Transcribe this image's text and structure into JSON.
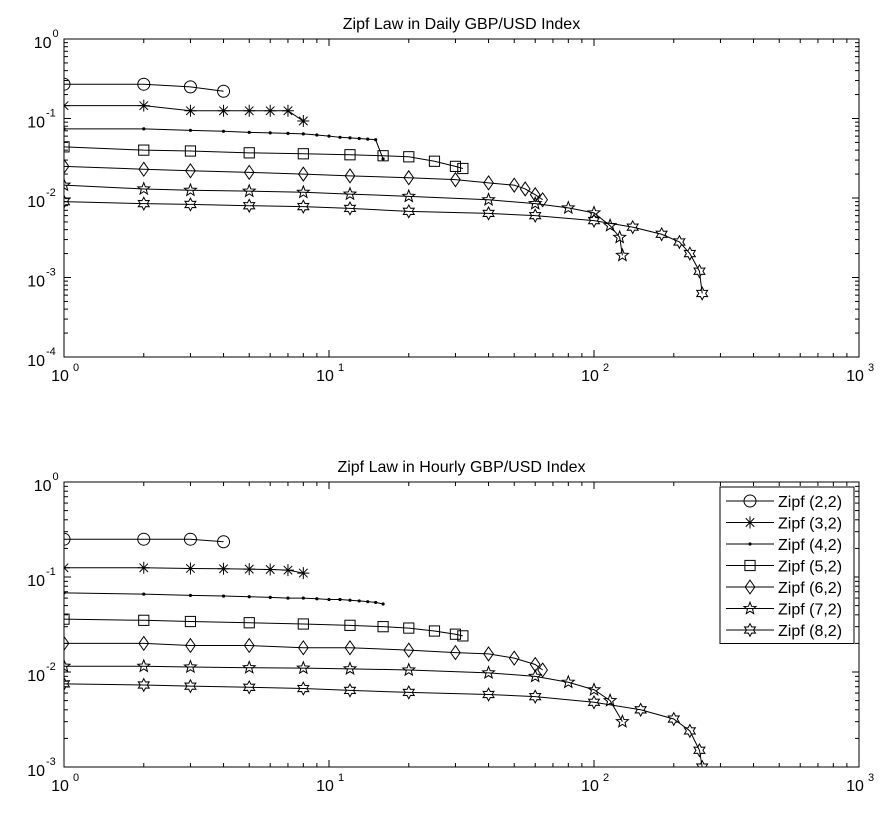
{
  "chart_data": [
    {
      "type": "line",
      "title": "Zipf Law in Daily GBP/USD Index",
      "xlabel": "",
      "ylabel": "",
      "xscale": "log",
      "yscale": "log",
      "xlim": [
        1,
        1000
      ],
      "ylim": [
        0.0001,
        1
      ],
      "grid": false,
      "x_ticks": [
        {
          "base": "10",
          "exp": "0"
        },
        {
          "base": "10",
          "exp": "1"
        },
        {
          "base": "10",
          "exp": "2"
        },
        {
          "base": "10",
          "exp": "3"
        }
      ],
      "y_ticks": [
        {
          "base": "10",
          "exp": "0"
        },
        {
          "base": "10",
          "exp": "-1"
        },
        {
          "base": "10",
          "exp": "-2"
        },
        {
          "base": "10",
          "exp": "-3"
        },
        {
          "base": "10",
          "exp": "-4"
        }
      ],
      "series": [
        {
          "marker": "circle",
          "x": [
            1,
            2,
            3,
            4
          ],
          "y": [
            0.27,
            0.27,
            0.25,
            0.22
          ]
        },
        {
          "marker": "asterisk",
          "x": [
            1,
            2,
            3,
            4,
            5,
            6,
            7,
            8
          ],
          "y": [
            0.145,
            0.145,
            0.125,
            0.125,
            0.125,
            0.125,
            0.125,
            0.093
          ]
        },
        {
          "marker": "dot",
          "x": [
            1,
            2,
            3,
            4,
            5,
            6,
            7,
            8,
            9,
            10,
            11,
            12,
            13,
            14,
            15,
            16
          ],
          "y": [
            0.074,
            0.074,
            0.071,
            0.069,
            0.067,
            0.066,
            0.065,
            0.064,
            0.062,
            0.06,
            0.058,
            0.057,
            0.056,
            0.055,
            0.054,
            0.031
          ]
        },
        {
          "marker": "square",
          "x": [
            1,
            2,
            3,
            5,
            8,
            12,
            16,
            20,
            25,
            30,
            32
          ],
          "y": [
            0.044,
            0.04,
            0.039,
            0.037,
            0.036,
            0.035,
            0.034,
            0.033,
            0.029,
            0.025,
            0.0235
          ]
        },
        {
          "marker": "diamond",
          "x": [
            1,
            2,
            3,
            5,
            8,
            12,
            20,
            30,
            40,
            50,
            55,
            60,
            64
          ],
          "y": [
            0.025,
            0.023,
            0.022,
            0.021,
            0.02,
            0.019,
            0.018,
            0.017,
            0.0155,
            0.0145,
            0.013,
            0.011,
            0.0095
          ]
        },
        {
          "marker": "star5",
          "x": [
            1,
            2,
            3,
            5,
            8,
            12,
            20,
            40,
            60,
            80,
            100,
            115,
            125,
            128
          ],
          "y": [
            0.0145,
            0.013,
            0.0125,
            0.0122,
            0.0118,
            0.0112,
            0.0105,
            0.0095,
            0.0085,
            0.0075,
            0.0065,
            0.0045,
            0.0032,
            0.0019
          ]
        },
        {
          "marker": "star6",
          "x": [
            1,
            2,
            3,
            5,
            8,
            12,
            20,
            40,
            60,
            100,
            140,
            180,
            210,
            230,
            250,
            256
          ],
          "y": [
            0.009,
            0.0085,
            0.0083,
            0.008,
            0.0078,
            0.0074,
            0.0068,
            0.0064,
            0.006,
            0.0052,
            0.0043,
            0.0035,
            0.0028,
            0.002,
            0.0012,
            0.00063
          ]
        }
      ]
    },
    {
      "type": "line",
      "title": "Zipf Law in Hourly GBP/USD Index",
      "xlabel": "",
      "ylabel": "",
      "xscale": "log",
      "yscale": "log",
      "xlim": [
        1,
        1000
      ],
      "ylim": [
        0.001,
        1
      ],
      "grid": false,
      "legend_position": "top-right",
      "x_ticks": [
        {
          "base": "10",
          "exp": "0"
        },
        {
          "base": "10",
          "exp": "1"
        },
        {
          "base": "10",
          "exp": "2"
        },
        {
          "base": "10",
          "exp": "3"
        }
      ],
      "y_ticks": [
        {
          "base": "10",
          "exp": "0"
        },
        {
          "base": "10",
          "exp": "-1"
        },
        {
          "base": "10",
          "exp": "-2"
        },
        {
          "base": "10",
          "exp": "-3"
        }
      ],
      "series": [
        {
          "name": "Zipf (2,2)",
          "marker": "circle",
          "x": [
            1,
            2,
            3,
            4
          ],
          "y": [
            0.25,
            0.25,
            0.25,
            0.235
          ]
        },
        {
          "name": "Zipf (3,2)",
          "marker": "asterisk",
          "x": [
            1,
            2,
            3,
            4,
            5,
            6,
            7,
            8
          ],
          "y": [
            0.125,
            0.125,
            0.123,
            0.122,
            0.121,
            0.12,
            0.118,
            0.11
          ]
        },
        {
          "name": "Zipf (4,2)",
          "marker": "dot",
          "x": [
            1,
            2,
            3,
            4,
            5,
            6,
            7,
            8,
            9,
            10,
            11,
            12,
            13,
            14,
            15,
            16
          ],
          "y": [
            0.068,
            0.066,
            0.064,
            0.063,
            0.062,
            0.061,
            0.06,
            0.06,
            0.059,
            0.058,
            0.058,
            0.057,
            0.056,
            0.055,
            0.054,
            0.052
          ]
        },
        {
          "name": "Zipf (5,2)",
          "marker": "square",
          "x": [
            1,
            2,
            3,
            5,
            8,
            12,
            16,
            20,
            25,
            30,
            32
          ],
          "y": [
            0.036,
            0.035,
            0.034,
            0.033,
            0.032,
            0.031,
            0.03,
            0.029,
            0.027,
            0.025,
            0.024
          ]
        },
        {
          "name": "Zipf (6,2)",
          "marker": "diamond",
          "x": [
            1,
            2,
            3,
            5,
            8,
            12,
            20,
            30,
            40,
            50,
            60,
            64
          ],
          "y": [
            0.02,
            0.02,
            0.019,
            0.019,
            0.018,
            0.018,
            0.017,
            0.016,
            0.0155,
            0.014,
            0.012,
            0.0105
          ]
        },
        {
          "name": "Zipf (7,2)",
          "marker": "star5",
          "x": [
            1,
            2,
            3,
            5,
            8,
            12,
            20,
            40,
            60,
            80,
            100,
            115,
            128
          ],
          "y": [
            0.0115,
            0.0115,
            0.0113,
            0.0111,
            0.011,
            0.0108,
            0.0105,
            0.0098,
            0.009,
            0.0078,
            0.0065,
            0.005,
            0.003
          ]
        },
        {
          "name": "Zipf (8,2)",
          "marker": "star6",
          "x": [
            1,
            2,
            3,
            5,
            8,
            12,
            20,
            40,
            60,
            100,
            150,
            200,
            230,
            250,
            256
          ],
          "y": [
            0.0075,
            0.0073,
            0.0071,
            0.0069,
            0.0067,
            0.0064,
            0.0061,
            0.0058,
            0.0055,
            0.0048,
            0.004,
            0.0032,
            0.0024,
            0.0015,
            0.001
          ]
        }
      ]
    }
  ]
}
